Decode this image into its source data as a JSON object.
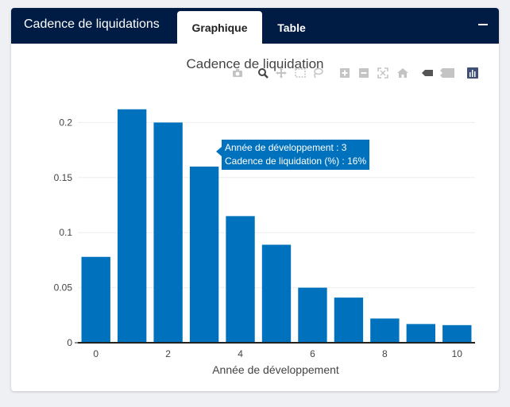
{
  "panel": {
    "title": "Cadence de liquidations",
    "tabs": [
      {
        "label": "Graphique",
        "active": true
      },
      {
        "label": "Table",
        "active": false
      }
    ],
    "collapse_icon": "minus-icon"
  },
  "modebar": {
    "buttons": [
      "camera-icon",
      "zoom-icon",
      "pan-icon",
      "box-select-icon",
      "lasso-icon",
      "zoom-in-icon",
      "zoom-out-icon",
      "autoscale-icon",
      "reset-home-icon",
      "spike-lines-icon",
      "compare-hover-icon",
      "plotly-logo-icon"
    ]
  },
  "tooltip": {
    "line1": "Année de développement : 3",
    "line2": "Cadence de liquidation (%) : 16%"
  },
  "colors": {
    "bar": "#0072bd",
    "header": "#001b44"
  },
  "chart_data": {
    "type": "bar",
    "title": "Cadence de liquidation",
    "xlabel": "Année de développement",
    "ylabel": "",
    "x": [
      0,
      1,
      2,
      3,
      4,
      5,
      6,
      7,
      8,
      9,
      10
    ],
    "values": [
      0.078,
      0.212,
      0.2,
      0.16,
      0.115,
      0.089,
      0.05,
      0.041,
      0.022,
      0.017,
      0.016
    ],
    "xlim": [
      -0.5,
      10.5
    ],
    "ylim": [
      0,
      0.232
    ],
    "xticks": [
      0,
      2,
      4,
      6,
      8,
      10
    ],
    "yticks": [
      0,
      0.05,
      0.1,
      0.15,
      0.2
    ],
    "ytick_labels": [
      "0",
      "0.05",
      "0.1",
      "0.15",
      "0.2"
    ],
    "grid": true,
    "highlighted_x": 3
  }
}
